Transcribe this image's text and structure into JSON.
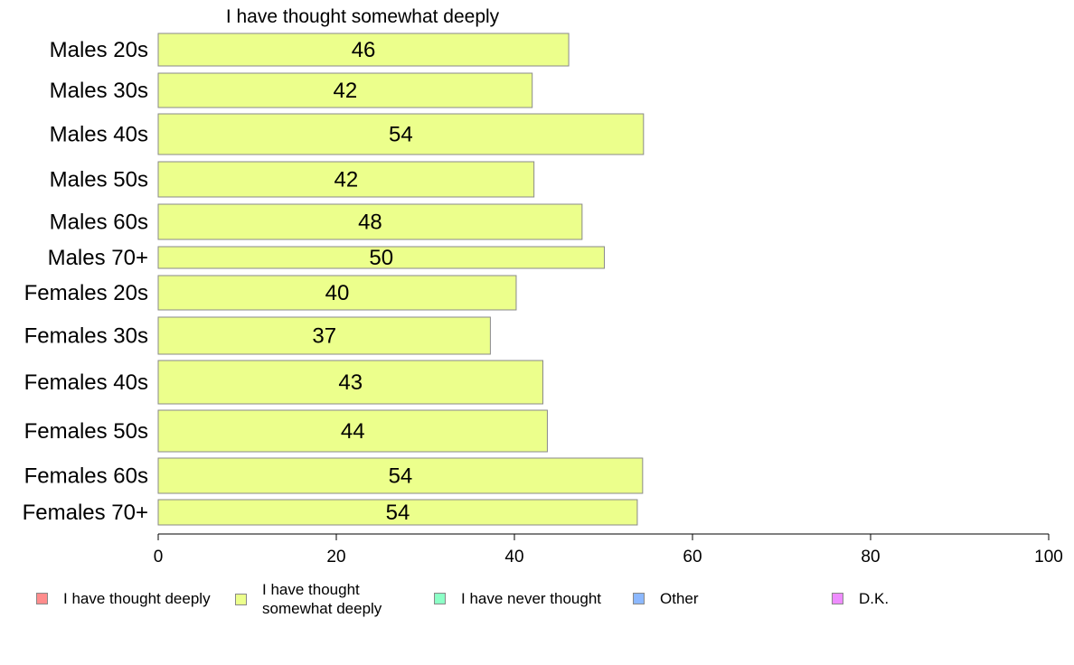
{
  "chart_data": {
    "type": "bar",
    "orientation": "horizontal",
    "title": "I have thought somewhat deeply",
    "categories": [
      "Males 20s",
      "Males 30s",
      "Males 40s",
      "Males 50s",
      "Males 60s",
      "Males 70+",
      "Females 20s",
      "Females 30s",
      "Females 40s",
      "Females 50s",
      "Females 60s",
      "Females 70+"
    ],
    "series": [
      {
        "name": "I have thought somewhat deeply",
        "color": "#ecff8c",
        "values": [
          46.1,
          42,
          54.5,
          42.2,
          47.6,
          50.1,
          40.2,
          37.3,
          43.2,
          43.7,
          54.4,
          53.8
        ],
        "labels": [
          "46",
          "42",
          "54",
          "42",
          "48",
          "50",
          "40",
          "37",
          "43",
          "44",
          "54",
          "54"
        ]
      }
    ],
    "xlim": [
      0,
      100
    ],
    "xticks": [
      "0",
      "20",
      "40",
      "60",
      "80",
      "100"
    ],
    "grid": false,
    "legend_position": "bottom",
    "legend": [
      {
        "label": "I have thought deeply",
        "color": "#ff8c8c"
      },
      {
        "label": "I have thought somewhat deeply",
        "color": "#ecff8c"
      },
      {
        "label": "I have never thought",
        "color": "#8cffc6"
      },
      {
        "label": "Other",
        "color": "#8cb8ff"
      },
      {
        "label": "D.K.",
        "color": "#ee8cff"
      }
    ]
  }
}
